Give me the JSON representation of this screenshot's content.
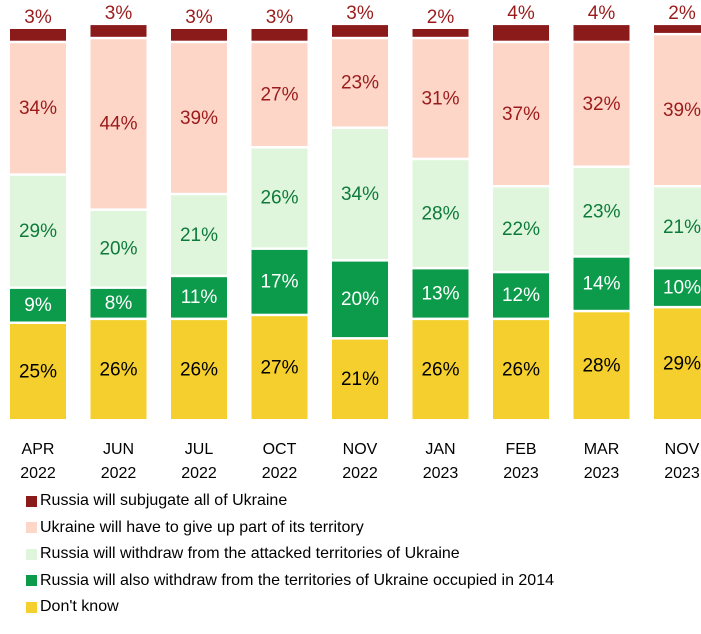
{
  "chart_data": {
    "type": "bar",
    "stacked": true,
    "categories": [
      [
        "APR",
        "2022"
      ],
      [
        "JUN",
        "2022"
      ],
      [
        "JUL",
        "2022"
      ],
      [
        "OCT",
        "2022"
      ],
      [
        "NOV",
        "2022"
      ],
      [
        "JAN",
        "2023"
      ],
      [
        "FEB",
        "2023"
      ],
      [
        "MAR",
        "2023"
      ],
      [
        "NOV",
        "2023"
      ]
    ],
    "series": [
      {
        "name": "Don't know",
        "color": "#f4cf2e",
        "label_color": "#000000",
        "values": [
          25,
          26,
          26,
          27,
          21,
          26,
          26,
          28,
          29
        ]
      },
      {
        "name": "Russia will also withdraw from the territories of Ukraine occupied in 2014",
        "color": "#0c9b4a",
        "label_color": "#ffffff",
        "values": [
          9,
          8,
          11,
          17,
          20,
          13,
          12,
          14,
          10
        ]
      },
      {
        "name": "Russia will withdraw from the attacked territories of Ukraine",
        "color": "#dff6dc",
        "label_color": "#0e7a3a",
        "values": [
          29,
          20,
          21,
          26,
          34,
          28,
          22,
          23,
          21
        ]
      },
      {
        "name": "Ukraine will have to give up part of its territory",
        "color": "#fdd6c8",
        "label_color": "#9b1b1b",
        "values": [
          34,
          44,
          39,
          27,
          23,
          31,
          37,
          32,
          39
        ]
      },
      {
        "name": "Russia will subjugate all of Ukraine",
        "color": "#8b1a1a",
        "label_color": "#9b1b1b",
        "values": [
          3,
          3,
          3,
          3,
          3,
          2,
          4,
          4,
          2
        ]
      }
    ],
    "value_suffix": "%",
    "legend_order": [
      4,
      3,
      2,
      1,
      0
    ],
    "legend_placement": "bottom",
    "grid": false
  }
}
